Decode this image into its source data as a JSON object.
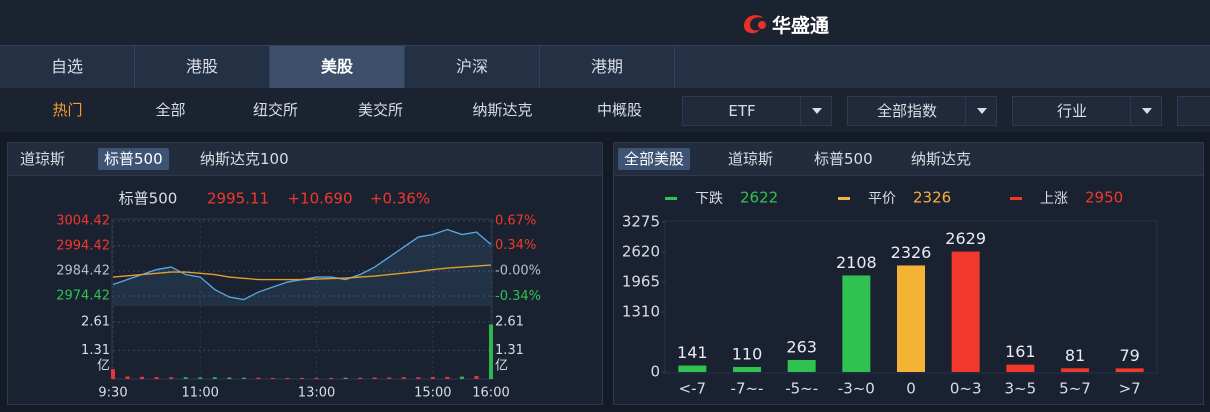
{
  "header": {
    "logo": "华盛通"
  },
  "tabs": [
    "自选",
    "港股",
    "美股",
    "沪深",
    "港期"
  ],
  "subtabs": [
    "热门",
    "全部",
    "纽交所",
    "美交所",
    "纳斯达克",
    "中概股"
  ],
  "dropdowns": [
    "ETF",
    "全部指数",
    "行业"
  ],
  "left_panel": {
    "tabs": [
      "道琼斯",
      "标普500",
      "纳斯达克100"
    ],
    "quote": {
      "name": "标普500",
      "price": "2995.11",
      "change": "+10.690",
      "change_pct": "+0.36%"
    },
    "chart_data": [
      {
        "type": "line",
        "x": [
          "9:30",
          null,
          null,
          null,
          null,
          null,
          "11:00",
          null,
          null,
          null,
          null,
          null,
          null,
          null,
          "13:00",
          null,
          null,
          null,
          null,
          null,
          null,
          null,
          "15:00",
          null,
          null,
          null,
          "16:00"
        ],
        "series": [
          {
            "color": "#5aa9e6",
            "values": [
              2979,
              2981,
              2983,
              2985,
              2986,
              2983,
              2982,
              2977,
              2974,
              2973,
              2976,
              2978,
              2980,
              2981,
              2982,
              2982,
              2981,
              2983,
              2986,
              2990,
              2994,
              2998,
              2999,
              3001,
              2999,
              3000,
              2995
            ]
          },
          {
            "color": "#e0a030",
            "values": [
              2982,
              2982.5,
              2983,
              2983.5,
              2984,
              2984,
              2983.5,
              2983,
              2982,
              2981.5,
              2981,
              2981,
              2981,
              2981,
              2981.2,
              2981.4,
              2981.6,
              2982,
              2982.4,
              2983,
              2983.6,
              2984.2,
              2985,
              2985.6,
              2986,
              2986.4,
              2986.8
            ]
          }
        ],
        "ylim": [
          2970.42,
          3004.42
        ],
        "yticks": [
          3004.42,
          2994.42,
          2984.42,
          2974.42
        ],
        "y2lim": [
          -0.469,
          0.67
        ],
        "y2ticks": [
          {
            "value": 0.67,
            "label": "0.67%"
          },
          {
            "value": 0.34,
            "label": "0.34%"
          },
          {
            "value": 0,
            "label": "-0.00%"
          },
          {
            "value": -0.34,
            "label": "-0.34%"
          }
        ],
        "grid": true
      },
      {
        "type": "bar",
        "values": [
          0.45,
          0.12,
          0.1,
          0.09,
          0.08,
          0.08,
          0.07,
          0.08,
          0.07,
          0.06,
          0.06,
          0.05,
          0.05,
          0.05,
          0.05,
          0.05,
          0.06,
          0.06,
          0.07,
          0.07,
          0.08,
          0.08,
          0.09,
          0.1,
          0.11,
          0.14,
          2.5
        ],
        "ylim": [
          0,
          2.61
        ],
        "yticks": [
          1.31,
          2.61
        ],
        "unit": "亿",
        "up_color": "#e0393e",
        "down_color": "#2fb553"
      }
    ]
  },
  "right_panel": {
    "tabs": [
      "全部美股",
      "道琼斯",
      "标普500",
      "纳斯达克"
    ],
    "legend": [
      {
        "label": "下跌",
        "count": 2622,
        "color": "#2fc250"
      },
      {
        "label": "平价",
        "count": 2326,
        "color": "#f5b335"
      },
      {
        "label": "上涨",
        "count": 2950,
        "color": "#f0392b"
      }
    ],
    "chart_data": {
      "type": "bar",
      "categories": [
        "<-7",
        "-7~-",
        "-5~-",
        "-3~0",
        "0",
        "0~3",
        "3~5",
        "5~7",
        ">7"
      ],
      "values": [
        141,
        110,
        263,
        2108,
        2326,
        2629,
        161,
        81,
        79
      ],
      "colors": [
        "#2fc250",
        "#2fc250",
        "#2fc250",
        "#2fc250",
        "#f5b335",
        "#f0392b",
        "#f0392b",
        "#f0392b",
        "#f0392b"
      ],
      "ylim": [
        0,
        3275
      ],
      "yticks": [
        0,
        1310,
        1965,
        2620,
        3275
      ]
    }
  }
}
